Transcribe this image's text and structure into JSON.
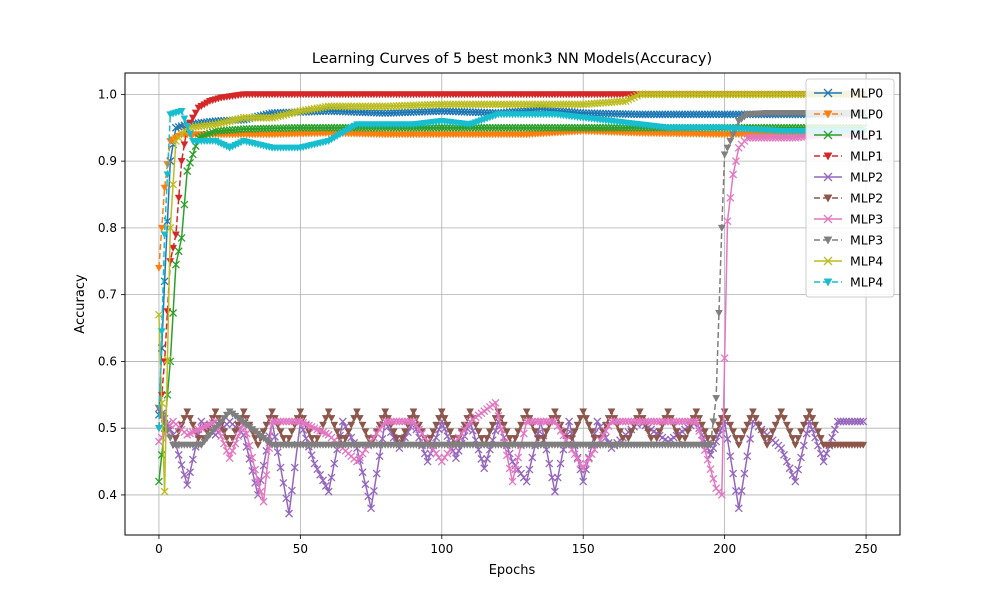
{
  "chart_data": {
    "type": "line",
    "title": "Learning Curves of 5 best monk3 NN Models(Accuracy)",
    "xlabel": "Epochs",
    "ylabel": "Accuracy",
    "xlim": [
      -12,
      262
    ],
    "ylim": [
      0.34,
      1.032
    ],
    "xticks": [
      0,
      50,
      100,
      150,
      200,
      250
    ],
    "yticks": [
      0.4,
      0.5,
      0.6,
      0.7,
      0.8,
      0.9,
      1.0
    ],
    "grid": true,
    "legend_position": "top-right",
    "series": [
      {
        "name": "MLP0",
        "color": "#1f77b4",
        "linestyle": "solid",
        "marker": "x",
        "points": [
          [
            0,
            0.52
          ],
          [
            2,
            0.72
          ],
          [
            4,
            0.9
          ],
          [
            6,
            0.95
          ],
          [
            10,
            0.955
          ],
          [
            20,
            0.96
          ],
          [
            30,
            0.962
          ],
          [
            40,
            0.972
          ],
          [
            60,
            0.975
          ],
          [
            80,
            0.972
          ],
          [
            100,
            0.975
          ],
          [
            120,
            0.972
          ],
          [
            135,
            0.978
          ],
          [
            150,
            0.972
          ],
          [
            170,
            0.97
          ],
          [
            200,
            0.97
          ],
          [
            230,
            0.97
          ],
          [
            249,
            0.972
          ]
        ]
      },
      {
        "name": "MLP0",
        "color": "#ff7f0e",
        "linestyle": "dashed",
        "marker": "v",
        "points": [
          [
            0,
            0.74
          ],
          [
            2,
            0.86
          ],
          [
            4,
            0.93
          ],
          [
            8,
            0.94
          ],
          [
            20,
            0.94
          ],
          [
            40,
            0.94
          ],
          [
            60,
            0.942
          ],
          [
            80,
            0.94
          ],
          [
            100,
            0.94
          ],
          [
            130,
            0.94
          ],
          [
            150,
            0.945
          ],
          [
            170,
            0.942
          ],
          [
            200,
            0.94
          ],
          [
            230,
            0.942
          ],
          [
            249,
            0.945
          ]
        ]
      },
      {
        "name": "MLP1",
        "color": "#2ca02c",
        "linestyle": "solid",
        "marker": "x",
        "points": [
          [
            0,
            0.42
          ],
          [
            2,
            0.5
          ],
          [
            4,
            0.6
          ],
          [
            6,
            0.745
          ],
          [
            8,
            0.785
          ],
          [
            10,
            0.885
          ],
          [
            14,
            0.935
          ],
          [
            20,
            0.945
          ],
          [
            30,
            0.948
          ],
          [
            50,
            0.95
          ],
          [
            80,
            0.95
          ],
          [
            110,
            0.95
          ],
          [
            150,
            0.95
          ],
          [
            200,
            0.95
          ],
          [
            249,
            0.95
          ]
        ]
      },
      {
        "name": "MLP1",
        "color": "#d62728",
        "linestyle": "dashed",
        "marker": "v",
        "points": [
          [
            0,
            0.5
          ],
          [
            2,
            0.6
          ],
          [
            4,
            0.75
          ],
          [
            6,
            0.79
          ],
          [
            8,
            0.9
          ],
          [
            10,
            0.95
          ],
          [
            14,
            0.98
          ],
          [
            18,
            0.99
          ],
          [
            22,
            0.995
          ],
          [
            30,
            1.0
          ],
          [
            60,
            1.0
          ],
          [
            100,
            1.0
          ],
          [
            150,
            1.0
          ],
          [
            200,
            1.0
          ],
          [
            249,
            1.0
          ]
        ]
      },
      {
        "name": "MLP2",
        "color": "#9467bd",
        "linestyle": "solid",
        "marker": "x",
        "points": [
          [
            0,
            0.53
          ],
          [
            5,
            0.49
          ],
          [
            10,
            0.415
          ],
          [
            15,
            0.51
          ],
          [
            20,
            0.49
          ],
          [
            25,
            0.51
          ],
          [
            30,
            0.49
          ],
          [
            35,
            0.4
          ],
          [
            40,
            0.51
          ],
          [
            46,
            0.372
          ],
          [
            50,
            0.51
          ],
          [
            55,
            0.447
          ],
          [
            60,
            0.405
          ],
          [
            65,
            0.51
          ],
          [
            70,
            0.47
          ],
          [
            75,
            0.38
          ],
          [
            80,
            0.51
          ],
          [
            85,
            0.47
          ],
          [
            90,
            0.51
          ],
          [
            95,
            0.45
          ],
          [
            100,
            0.51
          ],
          [
            105,
            0.455
          ],
          [
            110,
            0.51
          ],
          [
            115,
            0.44
          ],
          [
            120,
            0.51
          ],
          [
            125,
            0.45
          ],
          [
            130,
            0.42
          ],
          [
            135,
            0.51
          ],
          [
            140,
            0.405
          ],
          [
            145,
            0.51
          ],
          [
            150,
            0.42
          ],
          [
            155,
            0.51
          ],
          [
            160,
            0.47
          ],
          [
            170,
            0.51
          ],
          [
            180,
            0.48
          ],
          [
            190,
            0.51
          ],
          [
            195,
            0.46
          ],
          [
            200,
            0.51
          ],
          [
            205,
            0.38
          ],
          [
            210,
            0.51
          ],
          [
            220,
            0.47
          ],
          [
            225,
            0.42
          ],
          [
            230,
            0.51
          ],
          [
            235,
            0.45
          ],
          [
            240,
            0.51
          ],
          [
            249,
            0.51
          ]
        ]
      },
      {
        "name": "MLP2",
        "color": "#8c564b",
        "linestyle": "dashed",
        "marker": "v",
        "points": [
          [
            0,
            0.53
          ],
          [
            5,
            0.475
          ],
          [
            10,
            0.525
          ],
          [
            15,
            0.475
          ],
          [
            20,
            0.525
          ],
          [
            25,
            0.475
          ],
          [
            30,
            0.525
          ],
          [
            35,
            0.475
          ],
          [
            40,
            0.525
          ],
          [
            45,
            0.475
          ],
          [
            50,
            0.525
          ],
          [
            55,
            0.475
          ],
          [
            60,
            0.525
          ],
          [
            65,
            0.475
          ],
          [
            70,
            0.525
          ],
          [
            75,
            0.475
          ],
          [
            80,
            0.525
          ],
          [
            85,
            0.475
          ],
          [
            90,
            0.525
          ],
          [
            95,
            0.475
          ],
          [
            100,
            0.525
          ],
          [
            105,
            0.475
          ],
          [
            110,
            0.525
          ],
          [
            115,
            0.475
          ],
          [
            120,
            0.525
          ],
          [
            125,
            0.475
          ],
          [
            130,
            0.525
          ],
          [
            135,
            0.475
          ],
          [
            140,
            0.525
          ],
          [
            145,
            0.475
          ],
          [
            150,
            0.525
          ],
          [
            155,
            0.475
          ],
          [
            160,
            0.525
          ],
          [
            165,
            0.475
          ],
          [
            170,
            0.525
          ],
          [
            175,
            0.475
          ],
          [
            180,
            0.525
          ],
          [
            185,
            0.475
          ],
          [
            190,
            0.525
          ],
          [
            195,
            0.475
          ],
          [
            200,
            0.525
          ],
          [
            205,
            0.475
          ],
          [
            210,
            0.525
          ],
          [
            215,
            0.475
          ],
          [
            220,
            0.525
          ],
          [
            225,
            0.475
          ],
          [
            230,
            0.525
          ],
          [
            235,
            0.475
          ],
          [
            240,
            0.475
          ],
          [
            249,
            0.475
          ]
        ]
      },
      {
        "name": "MLP3",
        "color": "#e377c2",
        "linestyle": "solid",
        "marker": "x",
        "points": [
          [
            0,
            0.48
          ],
          [
            5,
            0.51
          ],
          [
            10,
            0.49
          ],
          [
            20,
            0.51
          ],
          [
            25,
            0.455
          ],
          [
            30,
            0.51
          ],
          [
            35,
            0.42
          ],
          [
            37,
            0.39
          ],
          [
            40,
            0.51
          ],
          [
            50,
            0.51
          ],
          [
            60,
            0.49
          ],
          [
            70,
            0.45
          ],
          [
            80,
            0.51
          ],
          [
            90,
            0.51
          ],
          [
            100,
            0.45
          ],
          [
            110,
            0.51
          ],
          [
            119,
            0.538
          ],
          [
            125,
            0.42
          ],
          [
            130,
            0.51
          ],
          [
            140,
            0.51
          ],
          [
            150,
            0.44
          ],
          [
            160,
            0.51
          ],
          [
            170,
            0.51
          ],
          [
            180,
            0.51
          ],
          [
            190,
            0.51
          ],
          [
            197,
            0.41
          ],
          [
            199,
            0.4
          ],
          [
            201,
            0.81
          ],
          [
            203,
            0.88
          ],
          [
            205,
            0.92
          ],
          [
            208,
            0.935
          ],
          [
            215,
            0.935
          ],
          [
            225,
            0.935
          ],
          [
            235,
            0.94
          ],
          [
            249,
            0.94
          ]
        ]
      },
      {
        "name": "MLP3",
        "color": "#7f7f7f",
        "linestyle": "dashed",
        "marker": "v",
        "points": [
          [
            0,
            0.53
          ],
          [
            5,
            0.475
          ],
          [
            15,
            0.475
          ],
          [
            25,
            0.525
          ],
          [
            40,
            0.475
          ],
          [
            60,
            0.475
          ],
          [
            80,
            0.475
          ],
          [
            100,
            0.475
          ],
          [
            120,
            0.475
          ],
          [
            140,
            0.475
          ],
          [
            160,
            0.475
          ],
          [
            180,
            0.475
          ],
          [
            195,
            0.475
          ],
          [
            197,
            0.545
          ],
          [
            199,
            0.8
          ],
          [
            200,
            0.91
          ],
          [
            203,
            0.94
          ],
          [
            205,
            0.96
          ],
          [
            208,
            0.97
          ],
          [
            215,
            0.972
          ],
          [
            230,
            0.972
          ],
          [
            249,
            0.972
          ]
        ]
      },
      {
        "name": "MLP4",
        "color": "#bcbd22",
        "linestyle": "solid",
        "marker": "x",
        "points": [
          [
            0,
            0.67
          ],
          [
            2,
            0.405
          ],
          [
            4,
            0.8
          ],
          [
            6,
            0.93
          ],
          [
            10,
            0.95
          ],
          [
            20,
            0.955
          ],
          [
            30,
            0.965
          ],
          [
            40,
            0.965
          ],
          [
            50,
            0.975
          ],
          [
            60,
            0.982
          ],
          [
            80,
            0.982
          ],
          [
            100,
            0.985
          ],
          [
            120,
            0.985
          ],
          [
            150,
            0.985
          ],
          [
            165,
            0.99
          ],
          [
            170,
            1.0
          ],
          [
            200,
            1.0
          ],
          [
            230,
            1.0
          ],
          [
            249,
            1.0
          ]
        ]
      },
      {
        "name": "MLP4",
        "color": "#17becf",
        "linestyle": "dashed",
        "marker": "v",
        "points": [
          [
            0,
            0.5
          ],
          [
            2,
            0.79
          ],
          [
            4,
            0.97
          ],
          [
            8,
            0.975
          ],
          [
            12,
            0.93
          ],
          [
            20,
            0.93
          ],
          [
            25,
            0.92
          ],
          [
            30,
            0.93
          ],
          [
            40,
            0.92
          ],
          [
            50,
            0.92
          ],
          [
            60,
            0.93
          ],
          [
            70,
            0.955
          ],
          [
            80,
            0.955
          ],
          [
            90,
            0.955
          ],
          [
            100,
            0.96
          ],
          [
            110,
            0.955
          ],
          [
            120,
            0.97
          ],
          [
            130,
            0.97
          ],
          [
            140,
            0.97
          ],
          [
            150,
            0.965
          ],
          [
            160,
            0.96
          ],
          [
            170,
            0.955
          ],
          [
            180,
            0.95
          ],
          [
            200,
            0.95
          ],
          [
            220,
            0.945
          ],
          [
            249,
            0.945
          ]
        ]
      }
    ]
  }
}
